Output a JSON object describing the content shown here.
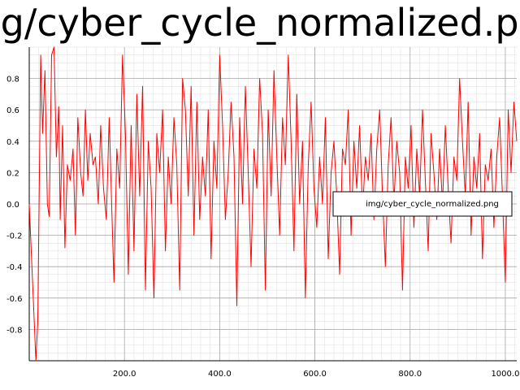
{
  "chart_data": {
    "type": "line",
    "title": "img/cyber_cycle_normalized.png",
    "xlabel": "",
    "ylabel": "",
    "xlim": [
      0,
      1024
    ],
    "ylim": [
      -1.0,
      1.0
    ],
    "grid": true,
    "legend_position": "right",
    "x_ticks": [
      200,
      400,
      600,
      800,
      1000
    ],
    "x_tick_labels": [
      "200.0",
      "400.0",
      "600.0",
      "800.0",
      "1000.0"
    ],
    "y_ticks": [
      -0.8,
      -0.6,
      -0.4,
      -0.2,
      0.0,
      0.2,
      0.4,
      0.6,
      0.8
    ],
    "y_tick_labels": [
      "-0.8",
      "-0.6",
      "-0.4",
      "-0.2",
      "0.0",
      "0.2",
      "0.4",
      "0.6",
      "0.8"
    ],
    "series": [
      {
        "name": "img/cyber_cycle_normalized.png",
        "color": "#ff0000",
        "x": [
          0,
          14,
          18,
          24,
          28,
          33,
          38,
          42,
          47,
          52,
          57,
          62,
          65,
          70,
          75,
          80,
          86,
          92,
          97,
          102,
          108,
          113,
          118,
          123,
          128,
          134,
          139,
          145,
          150,
          156,
          162,
          168,
          173,
          178,
          184,
          190,
          196,
          202,
          208,
          214,
          220,
          226,
          232,
          238,
          244,
          250,
          256,
          262,
          268,
          274,
          280,
          286,
          292,
          298,
          304,
          310,
          316,
          322,
          328,
          334,
          340,
          346,
          352,
          358,
          364,
          370,
          376,
          382,
          388,
          394,
          400,
          406,
          412,
          418,
          424,
          430,
          436,
          442,
          448,
          454,
          460,
          466,
          472,
          478,
          484,
          490,
          496,
          502,
          508,
          514,
          520,
          526,
          532,
          538,
          544,
          550,
          556,
          562,
          568,
          574,
          580,
          586,
          592,
          598,
          604,
          610,
          616,
          622,
          628,
          634,
          640,
          646,
          652,
          658,
          664,
          670,
          676,
          682,
          688,
          694,
          700,
          706,
          712,
          718,
          724,
          730,
          736,
          742,
          748,
          754,
          760,
          766,
          772,
          778,
          784,
          790,
          796,
          802,
          808,
          814,
          820,
          826,
          832,
          838,
          844,
          850,
          856,
          862,
          868,
          874,
          880,
          886,
          892,
          898,
          904,
          910,
          916,
          922,
          928,
          934,
          940,
          946,
          952,
          958,
          964,
          970,
          976,
          982,
          988,
          994,
          1000,
          1006,
          1012,
          1018,
          1024
        ],
        "y": [
          0.0,
          -1.0,
          -0.75,
          0.95,
          0.45,
          0.85,
          0.0,
          -0.08,
          0.95,
          1.0,
          0.3,
          0.62,
          -0.1,
          0.5,
          -0.28,
          0.25,
          0.15,
          0.35,
          -0.2,
          0.55,
          0.2,
          0.05,
          0.6,
          0.15,
          0.45,
          0.25,
          0.3,
          0.0,
          0.5,
          0.1,
          -0.1,
          0.55,
          0.0,
          -0.5,
          0.35,
          0.1,
          0.95,
          0.45,
          -0.45,
          0.5,
          -0.3,
          0.7,
          0.05,
          0.75,
          -0.55,
          0.4,
          0.1,
          -0.6,
          0.45,
          0.2,
          0.6,
          -0.3,
          0.3,
          0.0,
          0.55,
          0.25,
          -0.55,
          0.8,
          0.6,
          0.05,
          0.75,
          -0.2,
          0.65,
          -0.1,
          0.3,
          0.05,
          0.6,
          -0.35,
          0.4,
          0.1,
          0.95,
          0.5,
          -0.1,
          0.2,
          0.65,
          0.3,
          -0.65,
          0.55,
          0.0,
          0.75,
          0.2,
          -0.4,
          0.35,
          0.1,
          0.8,
          0.45,
          -0.55,
          0.6,
          0.05,
          0.85,
          0.3,
          -0.2,
          0.55,
          0.25,
          0.95,
          0.4,
          -0.3,
          0.7,
          0.0,
          0.4,
          -0.6,
          0.25,
          0.65,
          0.1,
          -0.15,
          0.3,
          0.0,
          0.55,
          -0.35,
          0.2,
          0.4,
          0.05,
          -0.45,
          0.35,
          0.25,
          0.6,
          -0.2,
          0.4,
          0.1,
          0.5,
          -0.05,
          0.3,
          0.15,
          0.45,
          -0.1,
          0.35,
          0.6,
          0.05,
          -0.4,
          0.25,
          0.55,
          0.0,
          0.4,
          0.2,
          -0.55,
          0.3,
          0.1,
          0.5,
          -0.15,
          0.35,
          0.05,
          0.6,
          0.15,
          -0.3,
          0.45,
          0.2,
          -0.1,
          0.35,
          0.0,
          0.5,
          0.1,
          -0.25,
          0.3,
          0.15,
          0.8,
          0.4,
          0.05,
          0.65,
          -0.2,
          0.3,
          0.1,
          0.45,
          -0.35,
          0.25,
          0.15,
          0.35,
          -0.15,
          0.3,
          0.55,
          0.05,
          -0.5,
          0.6,
          0.2,
          0.65,
          0.4
        ]
      }
    ]
  }
}
